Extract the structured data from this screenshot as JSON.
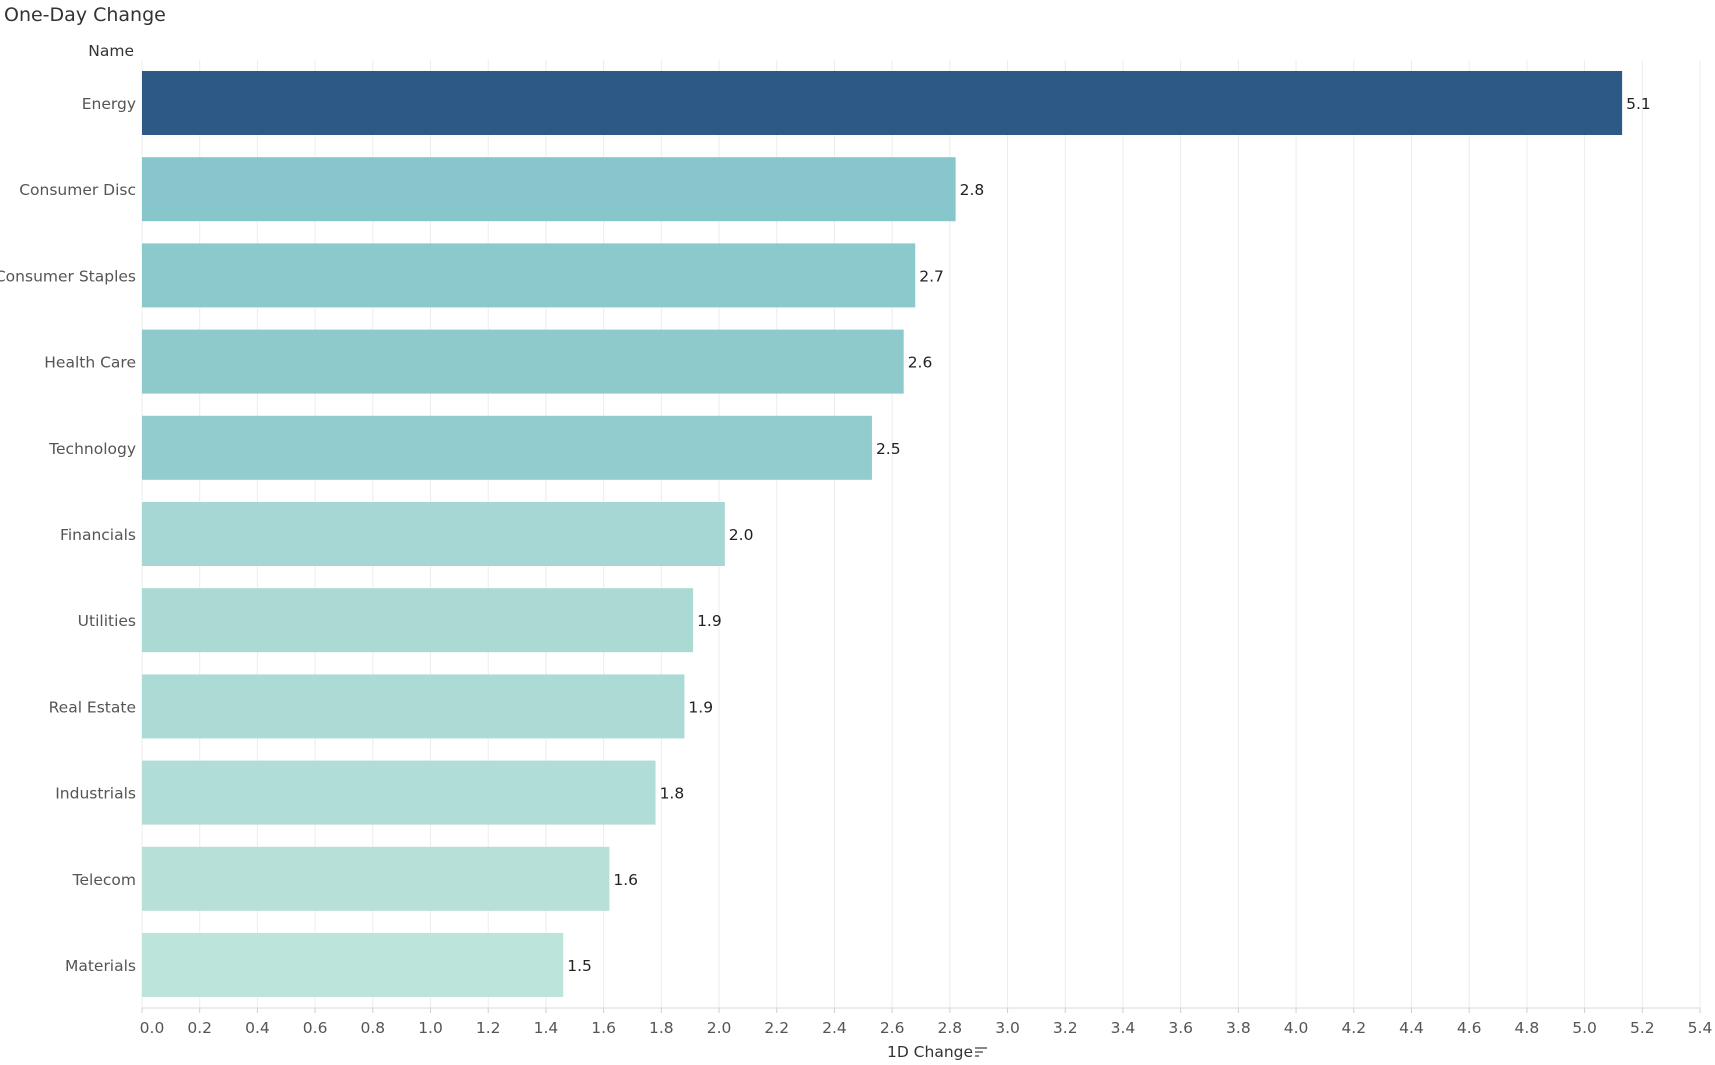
{
  "chart_data": {
    "type": "bar",
    "orientation": "horizontal",
    "title": "One-Day Change",
    "row_header": "Name",
    "xlabel": "1D Change",
    "xlabel_icon": "sort-descending-icon",
    "categories": [
      "Energy",
      "Consumer Disc",
      "Consumer Staples",
      "Health Care",
      "Technology",
      "Financials",
      "Utilities",
      "Real Estate",
      "Industrials",
      "Telecom",
      "Materials"
    ],
    "values": [
      5.13,
      2.82,
      2.68,
      2.64,
      2.53,
      2.02,
      1.91,
      1.88,
      1.78,
      1.62,
      1.46
    ],
    "data_labels": [
      "5.1",
      "2.8",
      "2.7",
      "2.6",
      "2.5",
      "2.0",
      "1.9",
      "1.9",
      "1.8",
      "1.6",
      "1.5"
    ],
    "xlim": [
      0,
      5.4
    ],
    "xticks": [
      "0.0",
      "0.2",
      "0.4",
      "0.6",
      "0.8",
      "1.0",
      "1.2",
      "1.4",
      "1.6",
      "1.8",
      "2.0",
      "2.2",
      "2.4",
      "2.6",
      "2.8",
      "3.0",
      "3.2",
      "3.4",
      "3.6",
      "3.8",
      "4.0",
      "4.2",
      "4.4",
      "4.6",
      "4.8",
      "5.0",
      "5.2",
      "5.4"
    ],
    "grid": true,
    "color_scale": {
      "low": "#bde4da",
      "mid": "#7bbfc7",
      "high": "#2d5986"
    }
  }
}
